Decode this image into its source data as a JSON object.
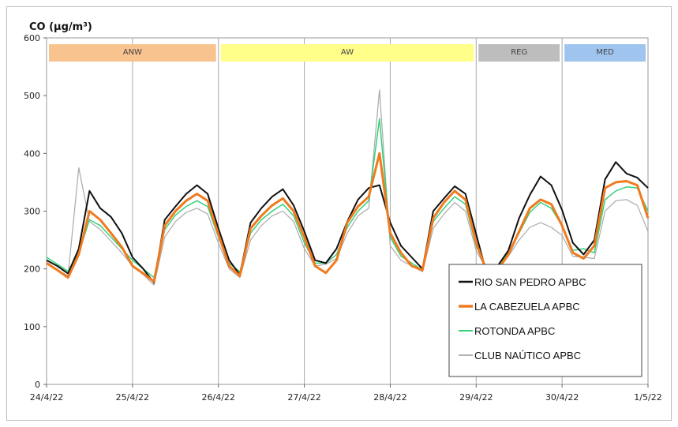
{
  "chart_data": {
    "type": "line",
    "ylabel": "CO (µg/m³)",
    "ylim": [
      0,
      600
    ],
    "yticks": [
      0,
      100,
      200,
      300,
      400,
      500,
      600
    ],
    "xlim": [
      "24/4/22",
      "1/5/22"
    ],
    "xtick_labels": [
      "24/4/22",
      "25/4/22",
      "26/4/22",
      "27/4/22",
      "28/4/22",
      "29/4/22",
      "30/4/22",
      "1/5/22"
    ],
    "vertical_grid": true,
    "horizontal_grid": false,
    "legend_position": "bottom-right",
    "bands": [
      {
        "label": "ANW",
        "from": "24/4/22",
        "to": "26/4/22",
        "color": "#f9c38f"
      },
      {
        "label": "AW",
        "from": "26/4/22",
        "to": "29/4/22",
        "color": "#ffff8a"
      },
      {
        "label": "REG",
        "from": "29/4/22",
        "to": "30/4/22",
        "color": "#bdbdbd"
      },
      {
        "label": "MED",
        "from": "30/4/22",
        "to": "1/5/22",
        "color": "#9fc5ef"
      }
    ],
    "x": [
      0,
      0.125,
      0.25,
      0.375,
      0.5,
      0.625,
      0.75,
      0.875,
      1,
      1.125,
      1.25,
      1.375,
      1.5,
      1.625,
      1.75,
      1.875,
      2,
      2.125,
      2.25,
      2.375,
      2.5,
      2.625,
      2.75,
      2.875,
      3,
      3.125,
      3.25,
      3.375,
      3.5,
      3.625,
      3.75,
      3.875,
      4,
      4.125,
      4.25,
      4.375,
      4.5,
      4.625,
      4.75,
      4.875,
      5,
      5.125,
      5.25,
      5.375,
      5.5,
      5.625,
      5.75,
      5.875,
      6,
      6.125,
      6.25,
      6.375,
      6.5,
      6.625,
      6.75,
      6.875,
      7
    ],
    "x_units": "days since 24/4/22 00:00",
    "series": [
      {
        "name": "RIO SAN PEDRO APBC",
        "color": "#111111",
        "width": 2,
        "values": [
          215,
          205,
          192,
          235,
          335,
          305,
          290,
          262,
          220,
          200,
          176,
          285,
          308,
          330,
          345,
          330,
          270,
          215,
          190,
          280,
          305,
          325,
          338,
          310,
          265,
          215,
          210,
          235,
          282,
          320,
          340,
          345,
          280,
          240,
          220,
          200,
          300,
          322,
          343,
          330,
          260,
          190,
          205,
          232,
          288,
          328,
          360,
          345,
          302,
          245,
          225,
          250,
          355,
          385,
          365,
          358,
          340
        ]
      },
      {
        "name": "LA CABEZUELA  APBC",
        "color": "#f07a1e",
        "width": 3,
        "values": [
          210,
          198,
          185,
          225,
          300,
          285,
          262,
          238,
          205,
          192,
          178,
          275,
          300,
          318,
          330,
          318,
          260,
          205,
          188,
          270,
          292,
          310,
          322,
          300,
          255,
          205,
          193,
          215,
          280,
          308,
          325,
          400,
          262,
          228,
          205,
          198,
          288,
          315,
          335,
          320,
          245,
          195,
          198,
          225,
          265,
          305,
          320,
          312,
          275,
          228,
          218,
          240,
          340,
          350,
          352,
          345,
          288
        ]
      },
      {
        "name": "ROTONDA  APBC",
        "color": "#35d07a",
        "width": 1.5,
        "values": [
          220,
          208,
          196,
          228,
          285,
          275,
          255,
          235,
          215,
          200,
          185,
          268,
          293,
          308,
          318,
          308,
          255,
          210,
          195,
          262,
          285,
          300,
          312,
          292,
          245,
          210,
          210,
          225,
          272,
          300,
          318,
          460,
          255,
          222,
          210,
          198,
          282,
          305,
          325,
          312,
          240,
          200,
          205,
          228,
          262,
          298,
          315,
          305,
          275,
          232,
          235,
          228,
          320,
          335,
          342,
          340,
          300
        ]
      },
      {
        "name": "CLUB NAÚTICO  APBC",
        "color": "#aaaaaa",
        "width": 1.2,
        "values": [
          212,
          198,
          188,
          375,
          282,
          268,
          248,
          228,
          205,
          190,
          172,
          255,
          282,
          298,
          305,
          295,
          245,
          200,
          185,
          250,
          275,
          292,
          300,
          282,
          235,
          205,
          208,
          218,
          262,
          292,
          305,
          510,
          240,
          215,
          205,
          195,
          270,
          295,
          315,
          300,
          232,
          198,
          202,
          222,
          250,
          272,
          280,
          272,
          258,
          222,
          220,
          218,
          300,
          318,
          320,
          310,
          265
        ]
      }
    ]
  }
}
